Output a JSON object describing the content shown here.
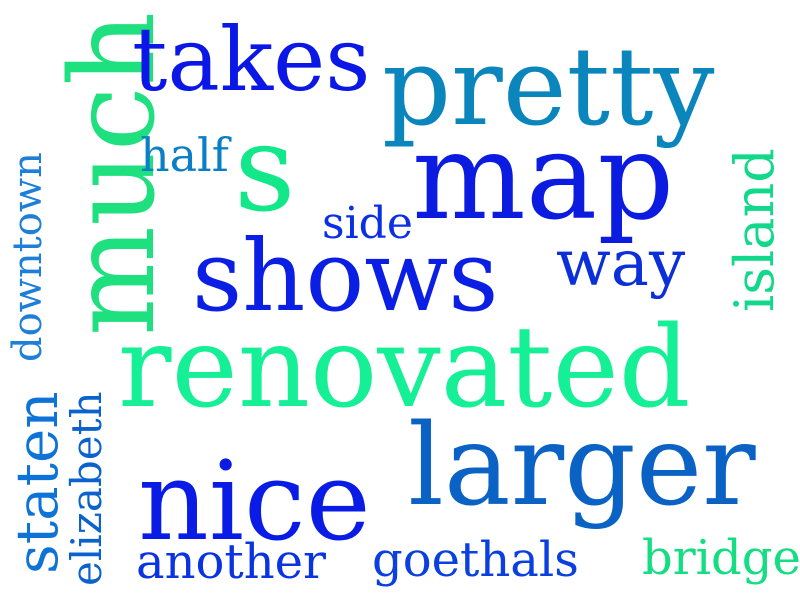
{
  "words": [
    {
      "text": "much",
      "color": "#1fe07e"
    },
    {
      "text": "takes",
      "color": "#0a17e6"
    },
    {
      "text": "pretty",
      "color": "#0a86bd"
    },
    {
      "text": "half",
      "color": "#0b7fc6"
    },
    {
      "text": "s",
      "color": "#12e88a"
    },
    {
      "text": "map",
      "color": "#0b1ce0"
    },
    {
      "text": "side",
      "color": "#0a2fe6"
    },
    {
      "text": "downtown",
      "color": "#1f7fd8"
    },
    {
      "text": "shows",
      "color": "#0a1fe3"
    },
    {
      "text": "way",
      "color": "#0b2fd8"
    },
    {
      "text": "island",
      "color": "#11d88a"
    },
    {
      "text": "renovated",
      "color": "#15ef95"
    },
    {
      "text": "staten",
      "color": "#0e73d6"
    },
    {
      "text": "elizabeth",
      "color": "#0b62cf"
    },
    {
      "text": "nice",
      "color": "#0a1be5"
    },
    {
      "text": "larger",
      "color": "#0a62c5"
    },
    {
      "text": "another",
      "color": "#0a34e2"
    },
    {
      "text": "goethals",
      "color": "#0a3fe0"
    },
    {
      "text": "bridge",
      "color": "#14dd82"
    }
  ]
}
